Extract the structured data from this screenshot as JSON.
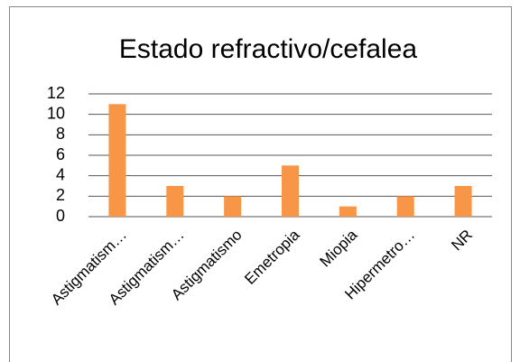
{
  "chart_data": {
    "type": "bar",
    "title": "Estado refractivo/cefalea",
    "categories": [
      "Astigmatism…",
      "Astigmatism…",
      "Astigmatismo",
      "Emetropia",
      "Miopia",
      "Hipermetro…",
      "NR"
    ],
    "values": [
      11,
      3,
      2,
      5,
      1,
      2,
      3
    ],
    "color": "#f79646",
    "ylim": [
      0,
      12
    ],
    "yticks": [
      0,
      2,
      4,
      6,
      8,
      10,
      12
    ],
    "grid": true
  }
}
